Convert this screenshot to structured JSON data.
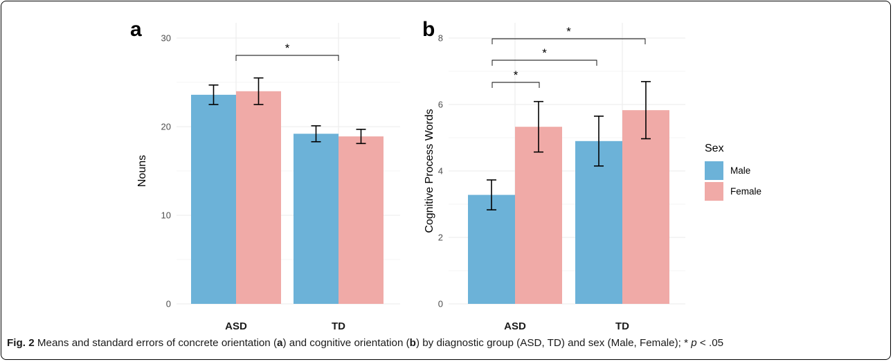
{
  "chart_data": [
    {
      "panel": "a",
      "type": "bar",
      "ylabel": "Nouns",
      "xlabel": "",
      "ylim": [
        0,
        30
      ],
      "yticks": [
        0,
        10,
        20,
        30
      ],
      "grid": true,
      "categories": [
        "ASD",
        "TD"
      ],
      "series": [
        {
          "name": "Male",
          "color": "#6cb2d8",
          "values": [
            23.6,
            19.2
          ],
          "se": [
            1.1,
            0.9
          ]
        },
        {
          "name": "Female",
          "color": "#f0aaa7",
          "values": [
            24.0,
            18.9
          ],
          "se": [
            1.5,
            0.8
          ]
        }
      ],
      "significance": [
        {
          "from": "ASD",
          "to": "TD",
          "label": "*"
        }
      ]
    },
    {
      "panel": "b",
      "type": "bar",
      "ylabel": "Cognitive Process Words",
      "xlabel": "",
      "ylim": [
        0,
        8
      ],
      "yticks": [
        0,
        2,
        4,
        6,
        8
      ],
      "grid": true,
      "categories": [
        "ASD",
        "TD"
      ],
      "series": [
        {
          "name": "Male",
          "color": "#6cb2d8",
          "values": [
            3.28,
            4.9
          ],
          "se": [
            0.45,
            0.75
          ]
        },
        {
          "name": "Female",
          "color": "#f0aaa7",
          "values": [
            5.33,
            5.83
          ],
          "se": [
            0.76,
            0.86
          ]
        }
      ],
      "significance": [
        {
          "from": "ASD-Male",
          "to": "ASD-Female",
          "label": "*"
        },
        {
          "from": "ASD-Male",
          "to": "TD-Male",
          "label": "*"
        },
        {
          "from": "ASD-Male",
          "to": "TD-Female",
          "label": "*"
        }
      ]
    }
  ],
  "legend": {
    "title": "Sex",
    "items": [
      {
        "label": "Male",
        "color": "#6cb2d8"
      },
      {
        "label": "Female",
        "color": "#f0aaa7"
      }
    ],
    "position": "right"
  },
  "caption": {
    "lead": "Fig. 2",
    "text_1": " Means and standard errors of concrete orientation (",
    "bold_a": "a",
    "text_2": ") and cognitive orientation (",
    "bold_b": "b",
    "text_3": ") by diagnostic group (ASD, TD) and sex (Male, Female); * ",
    "italic_p": "p",
    "text_4": " < .05"
  }
}
